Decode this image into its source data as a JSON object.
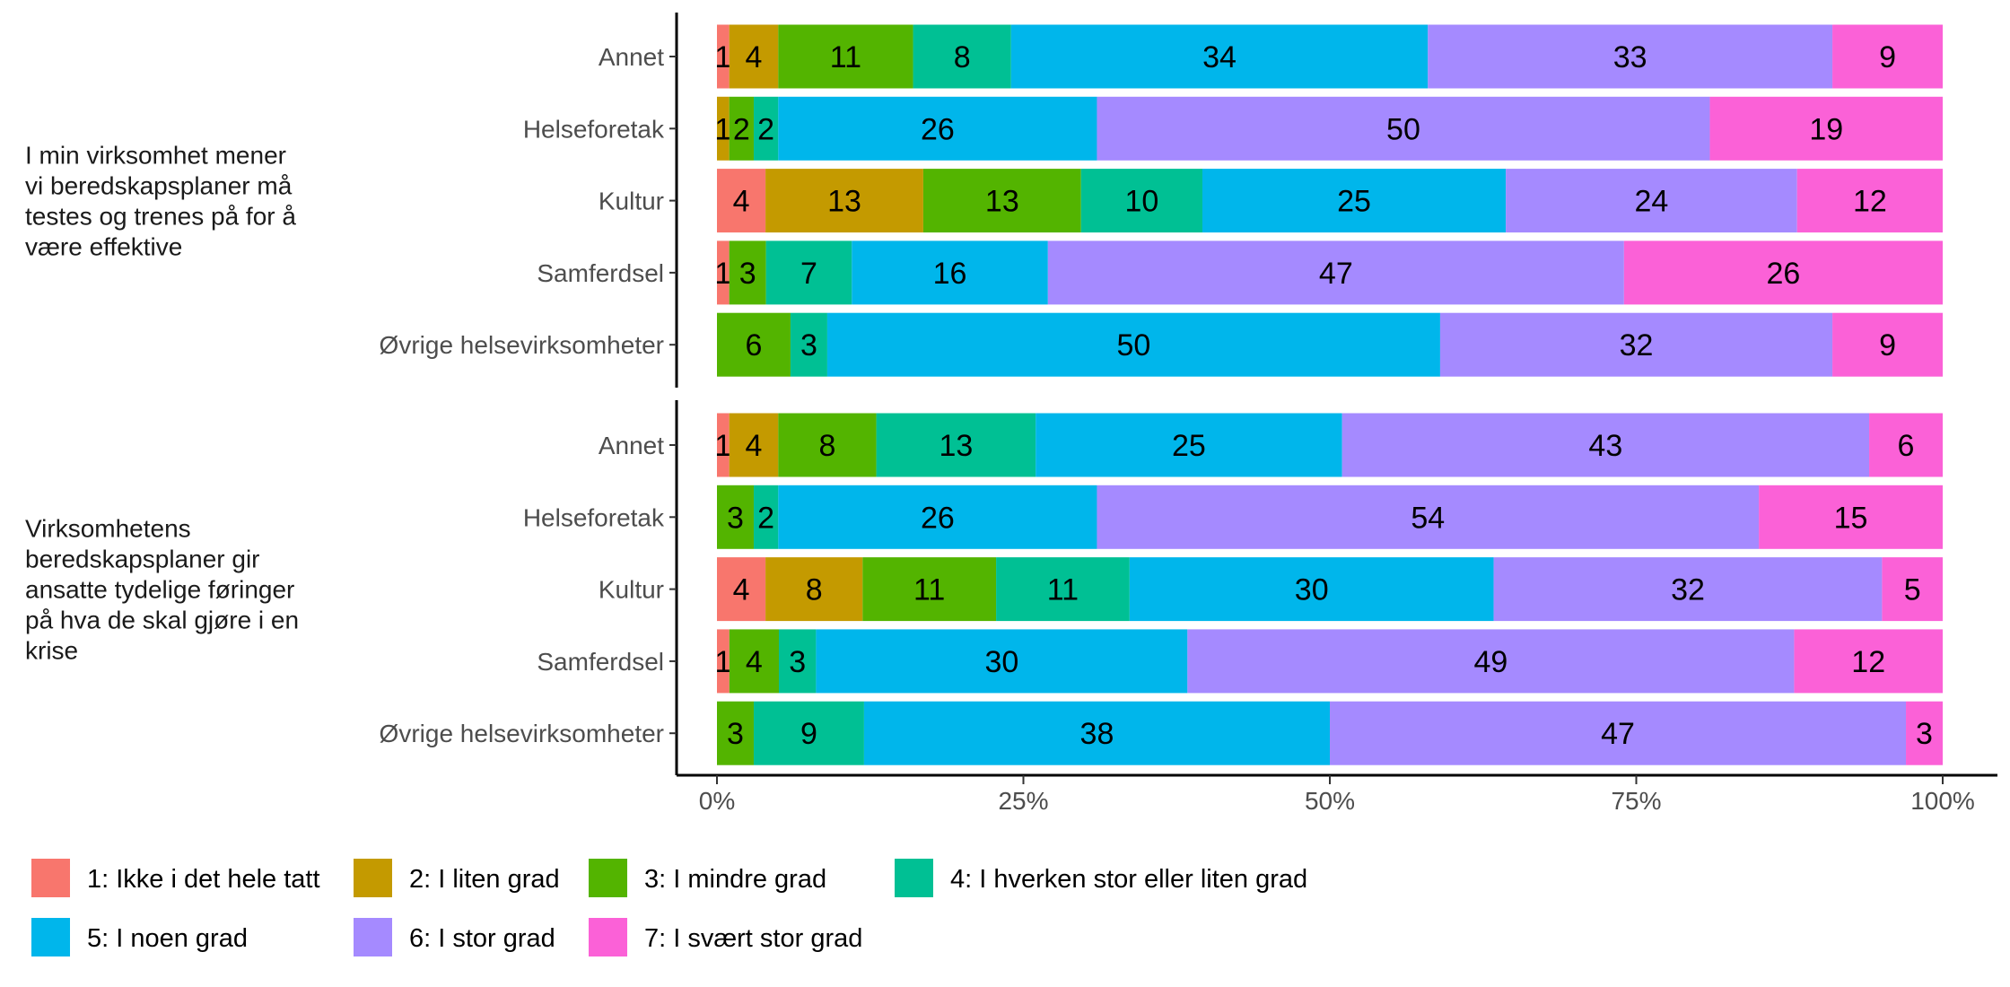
{
  "chart_data": {
    "type": "bar",
    "orientation": "horizontal",
    "stacked": true,
    "normalized": true,
    "x_axis": {
      "ticks": [
        "0%",
        "25%",
        "50%",
        "75%",
        "100%"
      ],
      "range": [
        0,
        100
      ]
    },
    "grid": false,
    "legend": {
      "position": "bottom",
      "entries": [
        {
          "label": "1: Ikke i det hele tatt",
          "color": "#F8766D"
        },
        {
          "label": "2: I liten grad",
          "color": "#C49A00"
        },
        {
          "label": "3: I mindre grad",
          "color": "#53B400"
        },
        {
          "label": "4: I hverken stor eller liten grad",
          "color": "#00C094"
        },
        {
          "label": "5: I noen grad",
          "color": "#00B6EB"
        },
        {
          "label": "6: I stor grad",
          "color": "#A58AFF"
        },
        {
          "label": "7: I svært stor grad",
          "color": "#FB61D7"
        }
      ]
    },
    "facets": [
      {
        "label": [
          "I min virksomhet mener",
          "vi beredskapsplaner må",
          "testes og trenes på for å",
          "være effektive"
        ],
        "rows": [
          {
            "category": "Annet",
            "values": [
              1,
              4,
              11,
              8,
              34,
              33,
              9
            ]
          },
          {
            "category": "Helseforetak",
            "values": [
              0,
              1,
              2,
              2,
              26,
              50,
              19
            ]
          },
          {
            "category": "Kultur",
            "values": [
              4,
              13,
              13,
              10,
              25,
              24,
              12
            ]
          },
          {
            "category": "Samferdsel",
            "values": [
              1,
              0,
              3,
              7,
              16,
              47,
              26
            ]
          },
          {
            "category": "Øvrige helsevirksomheter",
            "values": [
              0,
              0,
              6,
              3,
              50,
              32,
              9
            ]
          }
        ]
      },
      {
        "label": [
          "Virksomhetens",
          "beredskapsplaner gir",
          "ansatte tydelige føringer",
          "på hva de skal gjøre i en",
          "krise"
        ],
        "rows": [
          {
            "category": "Annet",
            "values": [
              1,
              4,
              8,
              13,
              25,
              43,
              6
            ]
          },
          {
            "category": "Helseforetak",
            "values": [
              0,
              0,
              3,
              2,
              26,
              54,
              15
            ]
          },
          {
            "category": "Kultur",
            "values": [
              4,
              8,
              11,
              11,
              30,
              32,
              5
            ]
          },
          {
            "category": "Samferdsel",
            "values": [
              1,
              0,
              4,
              3,
              30,
              49,
              12
            ]
          },
          {
            "category": "Øvrige helsevirksomheter",
            "values": [
              0,
              0,
              3,
              9,
              38,
              47,
              3
            ]
          }
        ]
      }
    ]
  }
}
